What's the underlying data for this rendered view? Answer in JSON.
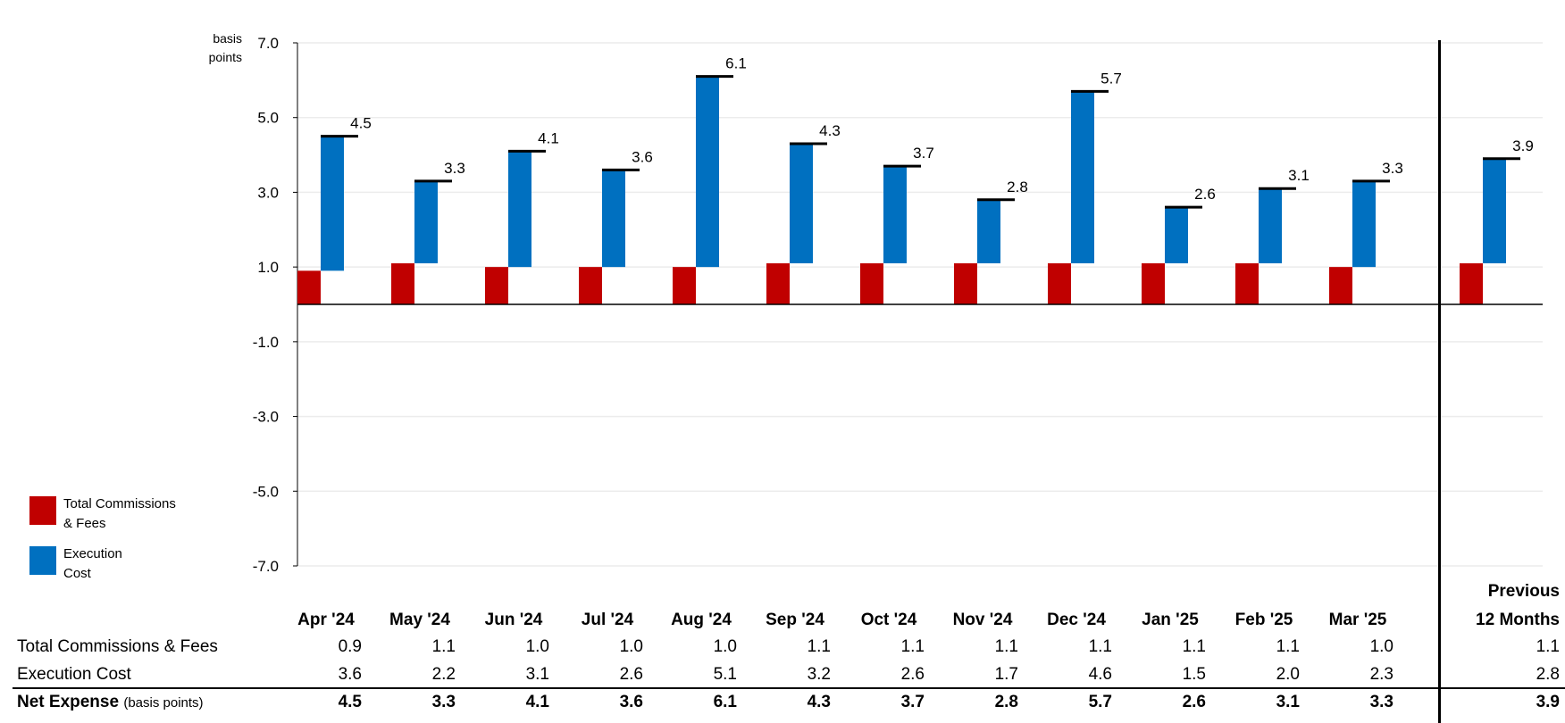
{
  "chart_data": {
    "type": "bar",
    "stacked": true,
    "y_unit": "basis points",
    "ylim": [
      -7.0,
      7.0
    ],
    "yticks": [
      "7.0",
      "5.0",
      "3.0",
      "1.0",
      "-1.0",
      "-3.0",
      "-5.0",
      "-7.0"
    ],
    "categories": [
      "Apr '24",
      "May '24",
      "Jun '24",
      "Jul '24",
      "Aug '24",
      "Sep '24",
      "Oct '24",
      "Nov '24",
      "Dec '24",
      "Jan '25",
      "Feb '25",
      "Mar '25"
    ],
    "summary_category": [
      "Previous",
      "12 Months"
    ],
    "series": [
      {
        "name": "Total Commissions & Fees",
        "color": "#c00000",
        "values": [
          0.9,
          1.1,
          1.0,
          1.0,
          1.0,
          1.1,
          1.1,
          1.1,
          1.1,
          1.1,
          1.1,
          1.0
        ],
        "summary": 1.1
      },
      {
        "name": "Execution Cost",
        "color": "#0070c0",
        "values": [
          3.6,
          2.2,
          3.1,
          2.6,
          5.1,
          3.2,
          2.6,
          1.7,
          4.6,
          1.5,
          2.0,
          2.3
        ],
        "summary": 2.8
      }
    ],
    "net": {
      "values": [
        4.5,
        3.3,
        4.1,
        3.6,
        6.1,
        4.3,
        3.7,
        2.8,
        5.7,
        2.6,
        3.1,
        3.3
      ],
      "summary": 3.9
    },
    "value_labels": [
      "4.5",
      "3.3",
      "4.1",
      "3.6",
      "6.1",
      "4.3",
      "3.7",
      "2.8",
      "5.7",
      "2.6",
      "3.1",
      "3.3",
      "3.9"
    ]
  },
  "axis_unit": [
    "basis",
    "points"
  ],
  "legend": [
    {
      "lines": [
        "Total Commissions",
        "& Fees"
      ],
      "color": "#c00000"
    },
    {
      "lines": [
        "Execution",
        "Cost"
      ],
      "color": "#0070c0"
    }
  ],
  "table": {
    "headers": [
      "Apr '24",
      "May '24",
      "Jun '24",
      "Jul '24",
      "Aug '24",
      "Sep '24",
      "Oct '24",
      "Nov '24",
      "Dec '24",
      "Jan '25",
      "Feb '25",
      "Mar '25"
    ],
    "summary_header": [
      "Previous",
      "12 Months"
    ],
    "rows": [
      {
        "label": "Total Commissions & Fees",
        "values": [
          "0.9",
          "1.1",
          "1.0",
          "1.0",
          "1.0",
          "1.1",
          "1.1",
          "1.1",
          "1.1",
          "1.1",
          "1.1",
          "1.0"
        ],
        "summary": "1.1"
      },
      {
        "label": "Execution Cost",
        "values": [
          "3.6",
          "2.2",
          "3.1",
          "2.6",
          "5.1",
          "3.2",
          "2.6",
          "1.7",
          "4.6",
          "1.5",
          "2.0",
          "2.3"
        ],
        "summary": "2.8"
      }
    ],
    "total": {
      "label": "Net Expense",
      "label_note": "(basis points)",
      "values": [
        "4.5",
        "3.3",
        "4.1",
        "3.6",
        "6.1",
        "4.3",
        "3.7",
        "2.8",
        "5.7",
        "2.6",
        "3.1",
        "3.3"
      ],
      "summary": "3.9"
    }
  }
}
